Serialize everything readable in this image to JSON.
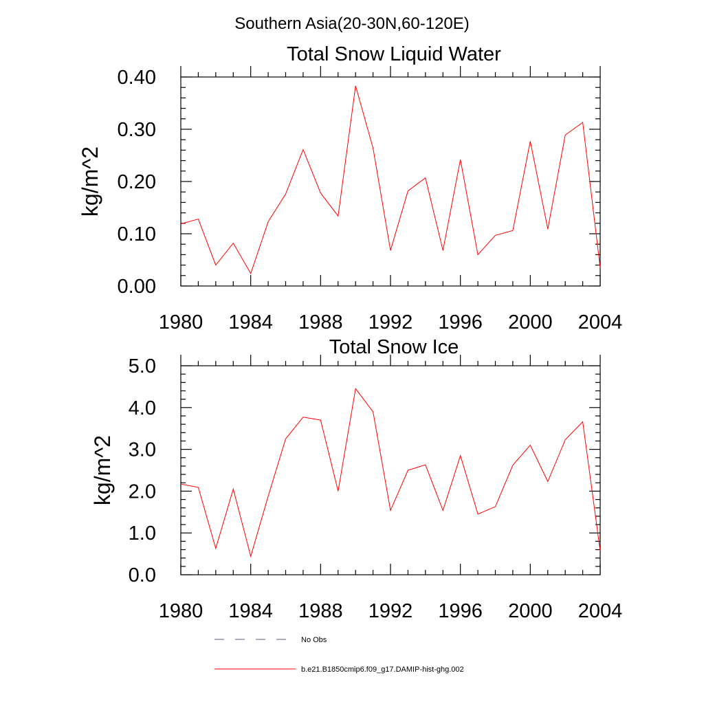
{
  "suptitle": "Southern Asia(20-30N,60-120E)",
  "chart_data": [
    {
      "type": "line",
      "title": "Total Snow Liquid Water",
      "xlabel": "",
      "ylabel": "kg/m^2",
      "xlim": [
        1980,
        2004
      ],
      "ylim": [
        0,
        0.4
      ],
      "x_ticks": [
        1980,
        1984,
        1988,
        1992,
        1996,
        2000,
        2004
      ],
      "x_tick_labels": [
        "1980",
        "1984",
        "1988",
        "1992",
        "1996",
        "2000",
        "2004"
      ],
      "y_ticks": [
        0,
        0.1,
        0.2,
        0.3,
        0.4
      ],
      "y_tick_labels": [
        "0.00",
        "0.10",
        "0.20",
        "0.30",
        "0.40"
      ],
      "grid": false,
      "series": [
        {
          "name": "b.e21.B1850cmip6.f09_g17.DAMIP-hist-ghg.002",
          "color": "#ff0000",
          "x": [
            1980,
            1981,
            1982,
            1983,
            1984,
            1985,
            1986,
            1987,
            1988,
            1989,
            1990,
            1991,
            1992,
            1993,
            1994,
            1995,
            1996,
            1997,
            1998,
            1999,
            2000,
            2001,
            2002,
            2003,
            2004
          ],
          "values": [
            0.119,
            0.128,
            0.04,
            0.082,
            0.024,
            0.123,
            0.176,
            0.261,
            0.178,
            0.134,
            0.383,
            0.264,
            0.068,
            0.182,
            0.207,
            0.068,
            0.242,
            0.06,
            0.097,
            0.106,
            0.277,
            0.109,
            0.289,
            0.313,
            0.035
          ]
        }
      ]
    },
    {
      "type": "line",
      "title": "Total Snow Ice",
      "xlabel": "",
      "ylabel": "kg/m^2",
      "xlim": [
        1980,
        2004
      ],
      "ylim": [
        0,
        5
      ],
      "x_ticks": [
        1980,
        1984,
        1988,
        1992,
        1996,
        2000,
        2004
      ],
      "x_tick_labels": [
        "1980",
        "1984",
        "1988",
        "1992",
        "1996",
        "2000",
        "2004"
      ],
      "y_ticks": [
        0,
        1,
        2,
        3,
        4,
        5
      ],
      "y_tick_labels": [
        "0.0",
        "1.0",
        "2.0",
        "3.0",
        "4.0",
        "5.0"
      ],
      "grid": false,
      "series": [
        {
          "name": "b.e21.B1850cmip6.f09_g17.DAMIP-hist-ghg.002",
          "color": "#ff0000",
          "x": [
            1980,
            1981,
            1982,
            1983,
            1984,
            1985,
            1986,
            1987,
            1988,
            1989,
            1990,
            1991,
            1992,
            1993,
            1994,
            1995,
            1996,
            1997,
            1998,
            1999,
            2000,
            2001,
            2002,
            2003,
            2004
          ],
          "values": [
            2.17,
            2.09,
            0.63,
            2.05,
            0.44,
            1.88,
            3.25,
            3.77,
            3.7,
            2.0,
            4.45,
            3.9,
            1.54,
            2.5,
            2.63,
            1.54,
            2.85,
            1.45,
            1.63,
            2.62,
            3.1,
            2.23,
            3.23,
            3.66,
            0.57
          ]
        }
      ]
    }
  ],
  "legend": {
    "placement": "bottom",
    "entries": [
      {
        "label": "No Obs",
        "color": "#5a5a8a",
        "style": "dashed"
      },
      {
        "label": "b.e21.B1850cmip6.f09_g17.DAMIP-hist-ghg.002",
        "color": "#ff0000",
        "style": "solid"
      }
    ]
  }
}
